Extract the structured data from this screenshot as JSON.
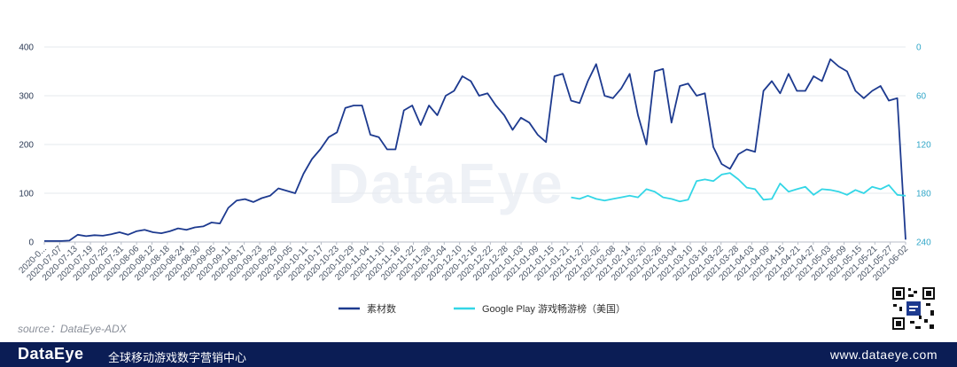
{
  "chart_data": {
    "type": "line",
    "title": "",
    "x_ticks": [
      "2020-0...",
      "2020-07-07",
      "2020-07-13",
      "2020-07-19",
      "2020-07-25",
      "2020-07-31",
      "2020-08-06",
      "2020-08-12",
      "2020-08-18",
      "2020-08-24",
      "2020-08-30",
      "2020-09-05",
      "2020-09-11",
      "2020-09-17",
      "2020-09-23",
      "2020-09-29",
      "2020-10-05",
      "2020-10-11",
      "2020-10-17",
      "2020-10-23",
      "2020-10-29",
      "2020-11-04",
      "2020-11-10",
      "2020-11-16",
      "2020-11-22",
      "2020-11-28",
      "2020-12-04",
      "2020-12-10",
      "2020-12-16",
      "2020-12-22",
      "2020-12-28",
      "2021-01-03",
      "2021-01-09",
      "2021-01-15",
      "2021-01-21",
      "2021-01-27",
      "2021-02-02",
      "2021-02-08",
      "2021-02-14",
      "2021-02-20",
      "2021-02-26",
      "2021-03-04",
      "2021-03-10",
      "2021-03-16",
      "2021-03-22",
      "2021-03-28",
      "2021-04-03",
      "2021-04-09",
      "2021-04-15",
      "2021-04-21",
      "2021-04-27",
      "2021-05-03",
      "2021-05-09",
      "2021-05-15",
      "2021-05-21",
      "2021-05-27",
      "2021-06-02"
    ],
    "y_left": {
      "min": 0,
      "max": 400,
      "ticks": [
        0,
        100,
        200,
        300,
        400
      ]
    },
    "y_right": {
      "min": 0,
      "max": 240,
      "inverted": true,
      "ticks": [
        0,
        60,
        120,
        180,
        240
      ]
    },
    "series": [
      {
        "name": "素材数",
        "color": "#1d3a8f",
        "axis": "left",
        "values": [
          2,
          2,
          2,
          3,
          15,
          12,
          14,
          13,
          16,
          20,
          15,
          22,
          25,
          20,
          18,
          22,
          28,
          25,
          30,
          32,
          40,
          38,
          70,
          85,
          88,
          82,
          90,
          95,
          110,
          105,
          100,
          140,
          170,
          190,
          215,
          225,
          275,
          280,
          280,
          220,
          215,
          190,
          190,
          270,
          280,
          240,
          280,
          260,
          300,
          310,
          340,
          330,
          300,
          305,
          280,
          260,
          230,
          255,
          245,
          220,
          205,
          340,
          345,
          290,
          285,
          330,
          365,
          300,
          295,
          315,
          345,
          260,
          200,
          350,
          355,
          245,
          320,
          325,
          300,
          305,
          195,
          160,
          150,
          180,
          190,
          185,
          310,
          330,
          305,
          345,
          310,
          310,
          340,
          330,
          375,
          360,
          350,
          310,
          295,
          310,
          320,
          290,
          295,
          5
        ]
      },
      {
        "name": "Google Play 游戏畅游榜（美国）",
        "color": "#33d6e6",
        "axis": "right",
        "values": [
          null,
          null,
          null,
          null,
          null,
          null,
          null,
          null,
          null,
          null,
          null,
          null,
          null,
          null,
          null,
          null,
          null,
          null,
          null,
          null,
          null,
          null,
          null,
          null,
          null,
          null,
          null,
          null,
          null,
          null,
          null,
          null,
          null,
          null,
          null,
          null,
          null,
          null,
          null,
          null,
          null,
          null,
          null,
          null,
          null,
          null,
          null,
          null,
          null,
          null,
          null,
          null,
          null,
          null,
          null,
          null,
          null,
          null,
          null,
          null,
          null,
          null,
          null,
          185,
          187,
          183,
          187,
          189,
          187,
          185,
          183,
          185,
          175,
          178,
          185,
          187,
          190,
          188,
          165,
          163,
          165,
          157,
          155,
          163,
          173,
          175,
          188,
          187,
          168,
          178,
          175,
          172,
          182,
          175,
          176,
          178,
          182,
          176,
          180,
          172,
          175,
          170,
          182,
          183
        ]
      }
    ],
    "legend_position": "bottom"
  },
  "source_text": "source：DataEye-ADX",
  "footer": {
    "logo": "DataEye",
    "slogan": "全球移动游戏数字营销中心",
    "url": "www.dataeye.com"
  },
  "watermark": "DataEye",
  "colors": {
    "footer_bg": "#0b1d55",
    "line_dark": "#1d3a8f",
    "line_cyan": "#33d6e6"
  }
}
